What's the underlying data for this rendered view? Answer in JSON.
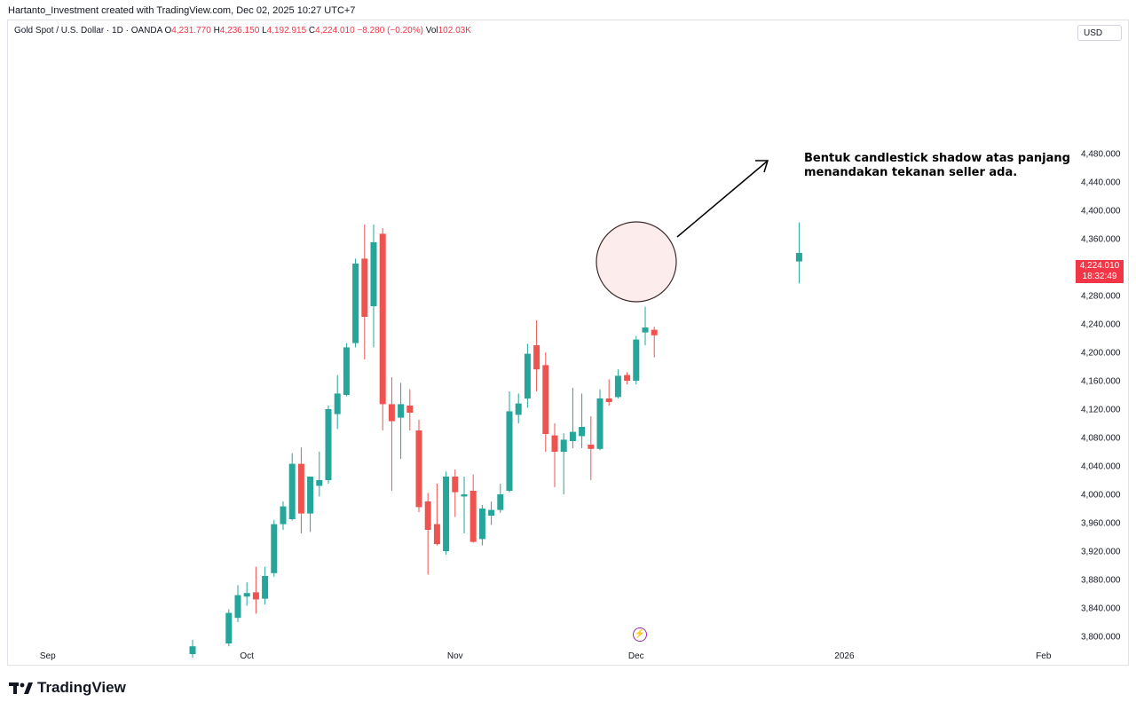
{
  "header": {
    "text": "Hartanto_Investment created with TradingView.com, Dec 02, 2025 10:27 UTC+7"
  },
  "legend": {
    "symbol": "Gold Spot / U.S. Dollar · 1D · OANDA",
    "o_label": "O",
    "o_value": "4,231.770",
    "h_label": "H",
    "h_value": "4,236.150",
    "l_label": "L",
    "l_value": "4,192.915",
    "c_label": "C",
    "c_value": "4,224.010",
    "change": "−8.280 (−0.20%)",
    "vol_label": "Vol",
    "vol_value": "102.03K"
  },
  "currency": "USD",
  "last_price": {
    "price": "4,224.010",
    "countdown": "18:32:49"
  },
  "annotation": {
    "line1": "Bentuk candlestick shadow atas panjang",
    "line2": "menandakan tekanan seller ada."
  },
  "branding": {
    "logo_text": "TradingView"
  },
  "colors": {
    "up": "#26a69a",
    "down": "#ef5350",
    "annotation_circle_fill": "#fbe5e6",
    "event_icon": "#9c27b0"
  },
  "icons": {
    "event": "lightning-icon",
    "logo": "tradingview-logo-icon"
  },
  "chart_data": {
    "type": "candlestick",
    "ylim": [
      3780,
      4480
    ],
    "y_ticks": [
      {
        "value": 3800,
        "label": "3,800.000"
      },
      {
        "value": 3840,
        "label": "3,840.000"
      },
      {
        "value": 3880,
        "label": "3,880.000"
      },
      {
        "value": 3920,
        "label": "3,920.000"
      },
      {
        "value": 3960,
        "label": "3,960.000"
      },
      {
        "value": 4000,
        "label": "4,000.000"
      },
      {
        "value": 4040,
        "label": "4,040.000"
      },
      {
        "value": 4080,
        "label": "4,080.000"
      },
      {
        "value": 4120,
        "label": "4,120.000"
      },
      {
        "value": 4160,
        "label": "4,160.000"
      },
      {
        "value": 4200,
        "label": "4,200.000"
      },
      {
        "value": 4240,
        "label": "4,240.000"
      },
      {
        "value": 4280,
        "label": "4,280.000"
      },
      {
        "value": 4320,
        "label": "4,320.000"
      },
      {
        "value": 4360,
        "label": "4,360.000"
      },
      {
        "value": 4400,
        "label": "4,400.000"
      },
      {
        "value": 4440,
        "label": "4,440.000"
      },
      {
        "value": 4480,
        "label": "4,480.000"
      }
    ],
    "x_ticks": [
      {
        "label": "Sep",
        "index": -21
      },
      {
        "label": "Oct",
        "index": 1
      },
      {
        "label": "Nov",
        "index": 24
      },
      {
        "label": "Dec",
        "index": 44
      },
      {
        "label": "2026",
        "index": 67
      },
      {
        "label": "Feb",
        "index": 89
      }
    ],
    "candles": [
      {
        "i": -5,
        "o": 3775,
        "h": 3795,
        "l": 3770,
        "c": 3786
      },
      {
        "i": -1,
        "o": 3790,
        "h": 3838,
        "l": 3786,
        "c": 3833
      },
      {
        "i": 0,
        "o": 3826,
        "h": 3872,
        "l": 3820,
        "c": 3858
      },
      {
        "i": 1,
        "o": 3856,
        "h": 3876,
        "l": 3843,
        "c": 3861
      },
      {
        "i": 2,
        "o": 3862,
        "h": 3898,
        "l": 3832,
        "c": 3852
      },
      {
        "i": 3,
        "o": 3853,
        "h": 3898,
        "l": 3845,
        "c": 3885
      },
      {
        "i": 4,
        "o": 3889,
        "h": 3964,
        "l": 3884,
        "c": 3958
      },
      {
        "i": 5,
        "o": 3958,
        "h": 3990,
        "l": 3950,
        "c": 3983
      },
      {
        "i": 6,
        "o": 3965,
        "h": 4058,
        "l": 3963,
        "c": 4043
      },
      {
        "i": 7,
        "o": 4043,
        "h": 4066,
        "l": 3945,
        "c": 3973
      },
      {
        "i": 8,
        "o": 3973,
        "h": 4020,
        "l": 3947,
        "c": 4025
      },
      {
        "i": 9,
        "o": 4012,
        "h": 4060,
        "l": 3997,
        "c": 4020
      },
      {
        "i": 10,
        "o": 4020,
        "h": 4125,
        "l": 4015,
        "c": 4120
      },
      {
        "i": 11,
        "o": 4113,
        "h": 4168,
        "l": 4092,
        "c": 4142
      },
      {
        "i": 12,
        "o": 4140,
        "h": 4213,
        "l": 4138,
        "c": 4207
      },
      {
        "i": 13,
        "o": 4213,
        "h": 4332,
        "l": 4207,
        "c": 4325
      },
      {
        "i": 14,
        "o": 4332,
        "h": 4380,
        "l": 4190,
        "c": 4250
      },
      {
        "i": 15,
        "o": 4265,
        "h": 4380,
        "l": 4207,
        "c": 4355
      },
      {
        "i": 16,
        "o": 4367,
        "h": 4375,
        "l": 4090,
        "c": 4127
      },
      {
        "i": 17,
        "o": 4127,
        "h": 4165,
        "l": 4005,
        "c": 4103
      },
      {
        "i": 18,
        "o": 4108,
        "h": 4157,
        "l": 4050,
        "c": 4127
      },
      {
        "i": 19,
        "o": 4125,
        "h": 4148,
        "l": 4090,
        "c": 4115
      },
      {
        "i": 20,
        "o": 4090,
        "h": 4105,
        "l": 3975,
        "c": 3982
      },
      {
        "i": 21,
        "o": 3990,
        "h": 4002,
        "l": 3887,
        "c": 3950
      },
      {
        "i": 22,
        "o": 3958,
        "h": 4015,
        "l": 3928,
        "c": 3930
      },
      {
        "i": 23,
        "o": 3920,
        "h": 4032,
        "l": 3915,
        "c": 4025
      },
      {
        "i": 24,
        "o": 4025,
        "h": 4035,
        "l": 3968,
        "c": 4003
      },
      {
        "i": 25,
        "o": 3997,
        "h": 4025,
        "l": 3945,
        "c": 4000
      },
      {
        "i": 26,
        "o": 4005,
        "h": 4028,
        "l": 3932,
        "c": 3933
      },
      {
        "i": 27,
        "o": 3937,
        "h": 3985,
        "l": 3928,
        "c": 3980
      },
      {
        "i": 28,
        "o": 3970,
        "h": 3990,
        "l": 3957,
        "c": 3978
      },
      {
        "i": 29,
        "o": 3978,
        "h": 4015,
        "l": 3974,
        "c": 4000
      },
      {
        "i": 30,
        "o": 4005,
        "h": 4145,
        "l": 4003,
        "c": 4117
      },
      {
        "i": 31,
        "o": 4112,
        "h": 4142,
        "l": 4100,
        "c": 4128
      },
      {
        "i": 32,
        "o": 4135,
        "h": 4212,
        "l": 4122,
        "c": 4198
      },
      {
        "i": 33,
        "o": 4210,
        "h": 4245,
        "l": 4145,
        "c": 4176
      },
      {
        "i": 34,
        "o": 4182,
        "h": 4200,
        "l": 4060,
        "c": 4085
      },
      {
        "i": 35,
        "o": 4083,
        "h": 4100,
        "l": 4010,
        "c": 4060
      },
      {
        "i": 36,
        "o": 4060,
        "h": 4086,
        "l": 4000,
        "c": 4077
      },
      {
        "i": 37,
        "o": 4075,
        "h": 4150,
        "l": 4065,
        "c": 4088
      },
      {
        "i": 38,
        "o": 4082,
        "h": 4142,
        "l": 4065,
        "c": 4095
      },
      {
        "i": 39,
        "o": 4070,
        "h": 4110,
        "l": 4020,
        "c": 4064
      },
      {
        "i": 40,
        "o": 4064,
        "h": 4148,
        "l": 4062,
        "c": 4135
      },
      {
        "i": 41,
        "o": 4135,
        "h": 4162,
        "l": 4125,
        "c": 4130
      },
      {
        "i": 42,
        "o": 4137,
        "h": 4176,
        "l": 4135,
        "c": 4167
      },
      {
        "i": 43,
        "o": 4168,
        "h": 4172,
        "l": 4155,
        "c": 4160
      },
      {
        "i": 44,
        "o": 4160,
        "h": 4223,
        "l": 4155,
        "c": 4218
      },
      {
        "i": 45,
        "o": 4228,
        "h": 4264,
        "l": 4210,
        "c": 4235
      },
      {
        "i": 46,
        "o": 4231.77,
        "h": 4236.15,
        "l": 4192.915,
        "c": 4224.01
      },
      {
        "i": 62,
        "o": 4328,
        "h": 4383,
        "l": 4297,
        "c": 4340
      }
    ]
  }
}
